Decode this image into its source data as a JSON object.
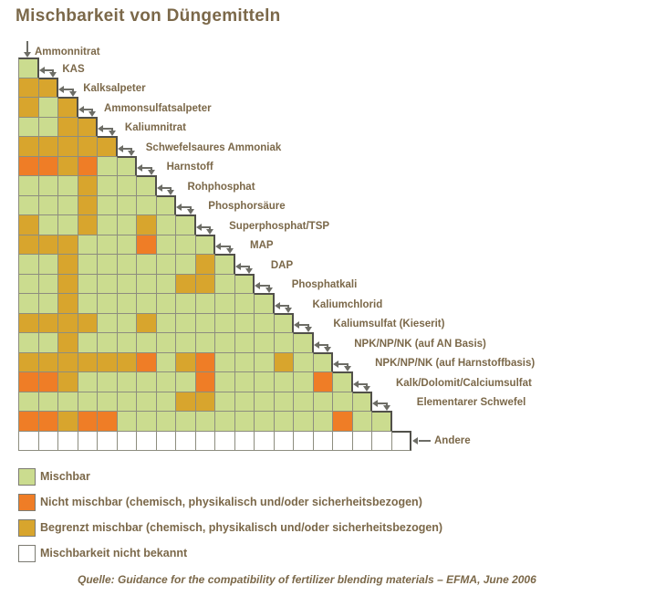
{
  "title": "Mischbarkeit von Düngemitteln",
  "legend": {
    "items": [
      {
        "key": "M",
        "label": "Mischbar"
      },
      {
        "key": "N",
        "label": "Nicht mischbar (chemisch, physikalisch und/oder sicherheitsbezogen)"
      },
      {
        "key": "B",
        "label": "Begrenzt mischbar (chemisch, physikalisch und/oder sicherheitsbezogen)"
      },
      {
        "key": "U",
        "label": "Mischbarkeit nicht bekannt"
      }
    ]
  },
  "source": "Quelle: Guidance for the compatibility of fertilizer blending materials – EFMA, June 2006",
  "colors": {
    "M": "#cbdc8f",
    "N": "#ef7d26",
    "B": "#d8a52d",
    "U": "#ffffff",
    "grid": "#8d8d7f",
    "edge": "#51504a",
    "arrow": "#6d6d66",
    "text": "#7b6849"
  },
  "chart_data": {
    "type": "heatmap",
    "title": "Mischbarkeit von Düngemitteln",
    "legend_position": "bottom-left",
    "cell_codes": {
      "M": "Mischbar",
      "N": "Nicht mischbar",
      "B": "Begrenzt mischbar",
      "U": "Mischbarkeit nicht bekannt"
    },
    "layout": "lower-triangular matrix, row n has n cells, row label attached with elbow arrow at diagonal",
    "rows": [
      {
        "label": "Ammonnitrat",
        "cells": "M"
      },
      {
        "label": "KAS",
        "cells": "BB"
      },
      {
        "label": "Kalksalpeter",
        "cells": "BMB"
      },
      {
        "label": "Ammonsulfatsalpeter",
        "cells": "MMBB"
      },
      {
        "label": "Kaliumnitrat",
        "cells": "BBBBB"
      },
      {
        "label": "Schwefelsaures Ammoniak",
        "cells": "NNBNMM"
      },
      {
        "label": "Harnstoff",
        "cells": "MMMBMMM"
      },
      {
        "label": "Rohphosphat",
        "cells": "MMMBMMMM"
      },
      {
        "label": "Phosphorsäure",
        "cells": "BMMBMMBMM"
      },
      {
        "label": "Superphosphat/TSP",
        "cells": "BBBMMMNMMM"
      },
      {
        "label": "MAP",
        "cells": "MMBMMMMMMBM"
      },
      {
        "label": "DAP",
        "cells": "MMBMMMMMBBMM"
      },
      {
        "label": "Phosphatkali",
        "cells": "MMBMMMMMMMMMM"
      },
      {
        "label": "Kaliumchlorid",
        "cells": "BBBBMMBMMMMMMM"
      },
      {
        "label": "Kaliumsulfat (Kieserit)",
        "cells": "MMBMMMMMMMMMMMM"
      },
      {
        "label": "NPK/NP/NK (auf AN Basis)",
        "cells": "BBBBBBNMBNMMMBMM"
      },
      {
        "label": "NPK/NP/NK (auf Harnstoffbasis)",
        "cells": "NNBMMMMMMNMMMMMNM"
      },
      {
        "label": "Kalk/Dolomit/Calciumsulfat",
        "cells": "MMMMMMMMBBMMMMMMMM"
      },
      {
        "label": "Elementarer Schwefel",
        "cells": "NNBNNMMMMMMMMMMMNMM"
      },
      {
        "label": "Andere",
        "cells": "UUUUUUUUUUUUUUUUUUUU"
      }
    ]
  }
}
